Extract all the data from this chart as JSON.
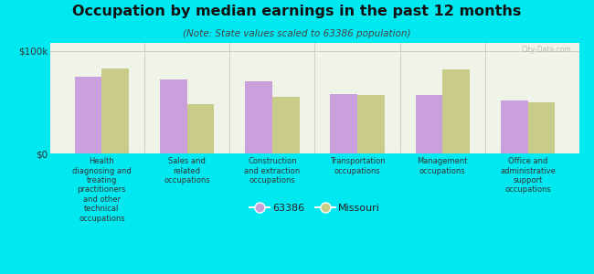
{
  "title": "Occupation by median earnings in the past 12 months",
  "subtitle": "(Note: State values scaled to 63386 population)",
  "categories": [
    "Health\ndiagnosing and\ntreating\npractitioners\nand other\ntechnical\noccupations",
    "Sales and\nrelated\noccupations",
    "Construction\nand extraction\noccupations",
    "Transportation\noccupations",
    "Management\noccupations",
    "Office and\nadministrative\nsupport\noccupations"
  ],
  "values_63386": [
    75000,
    72000,
    70000,
    58000,
    57000,
    52000
  ],
  "values_missouri": [
    83000,
    48000,
    55000,
    57000,
    82000,
    50000
  ],
  "color_63386": "#c9a0dc",
  "color_missouri": "#c8cc88",
  "background_color": "#00e8f0",
  "plot_bg_color": "#f0f4e8",
  "ylabel_ticks": [
    "$0",
    "$100k"
  ],
  "ylim": [
    0,
    108000
  ],
  "yticks": [
    0,
    100000
  ],
  "legend_label_1": "63386",
  "legend_label_2": "Missouri",
  "watermark": "City-Data.com"
}
